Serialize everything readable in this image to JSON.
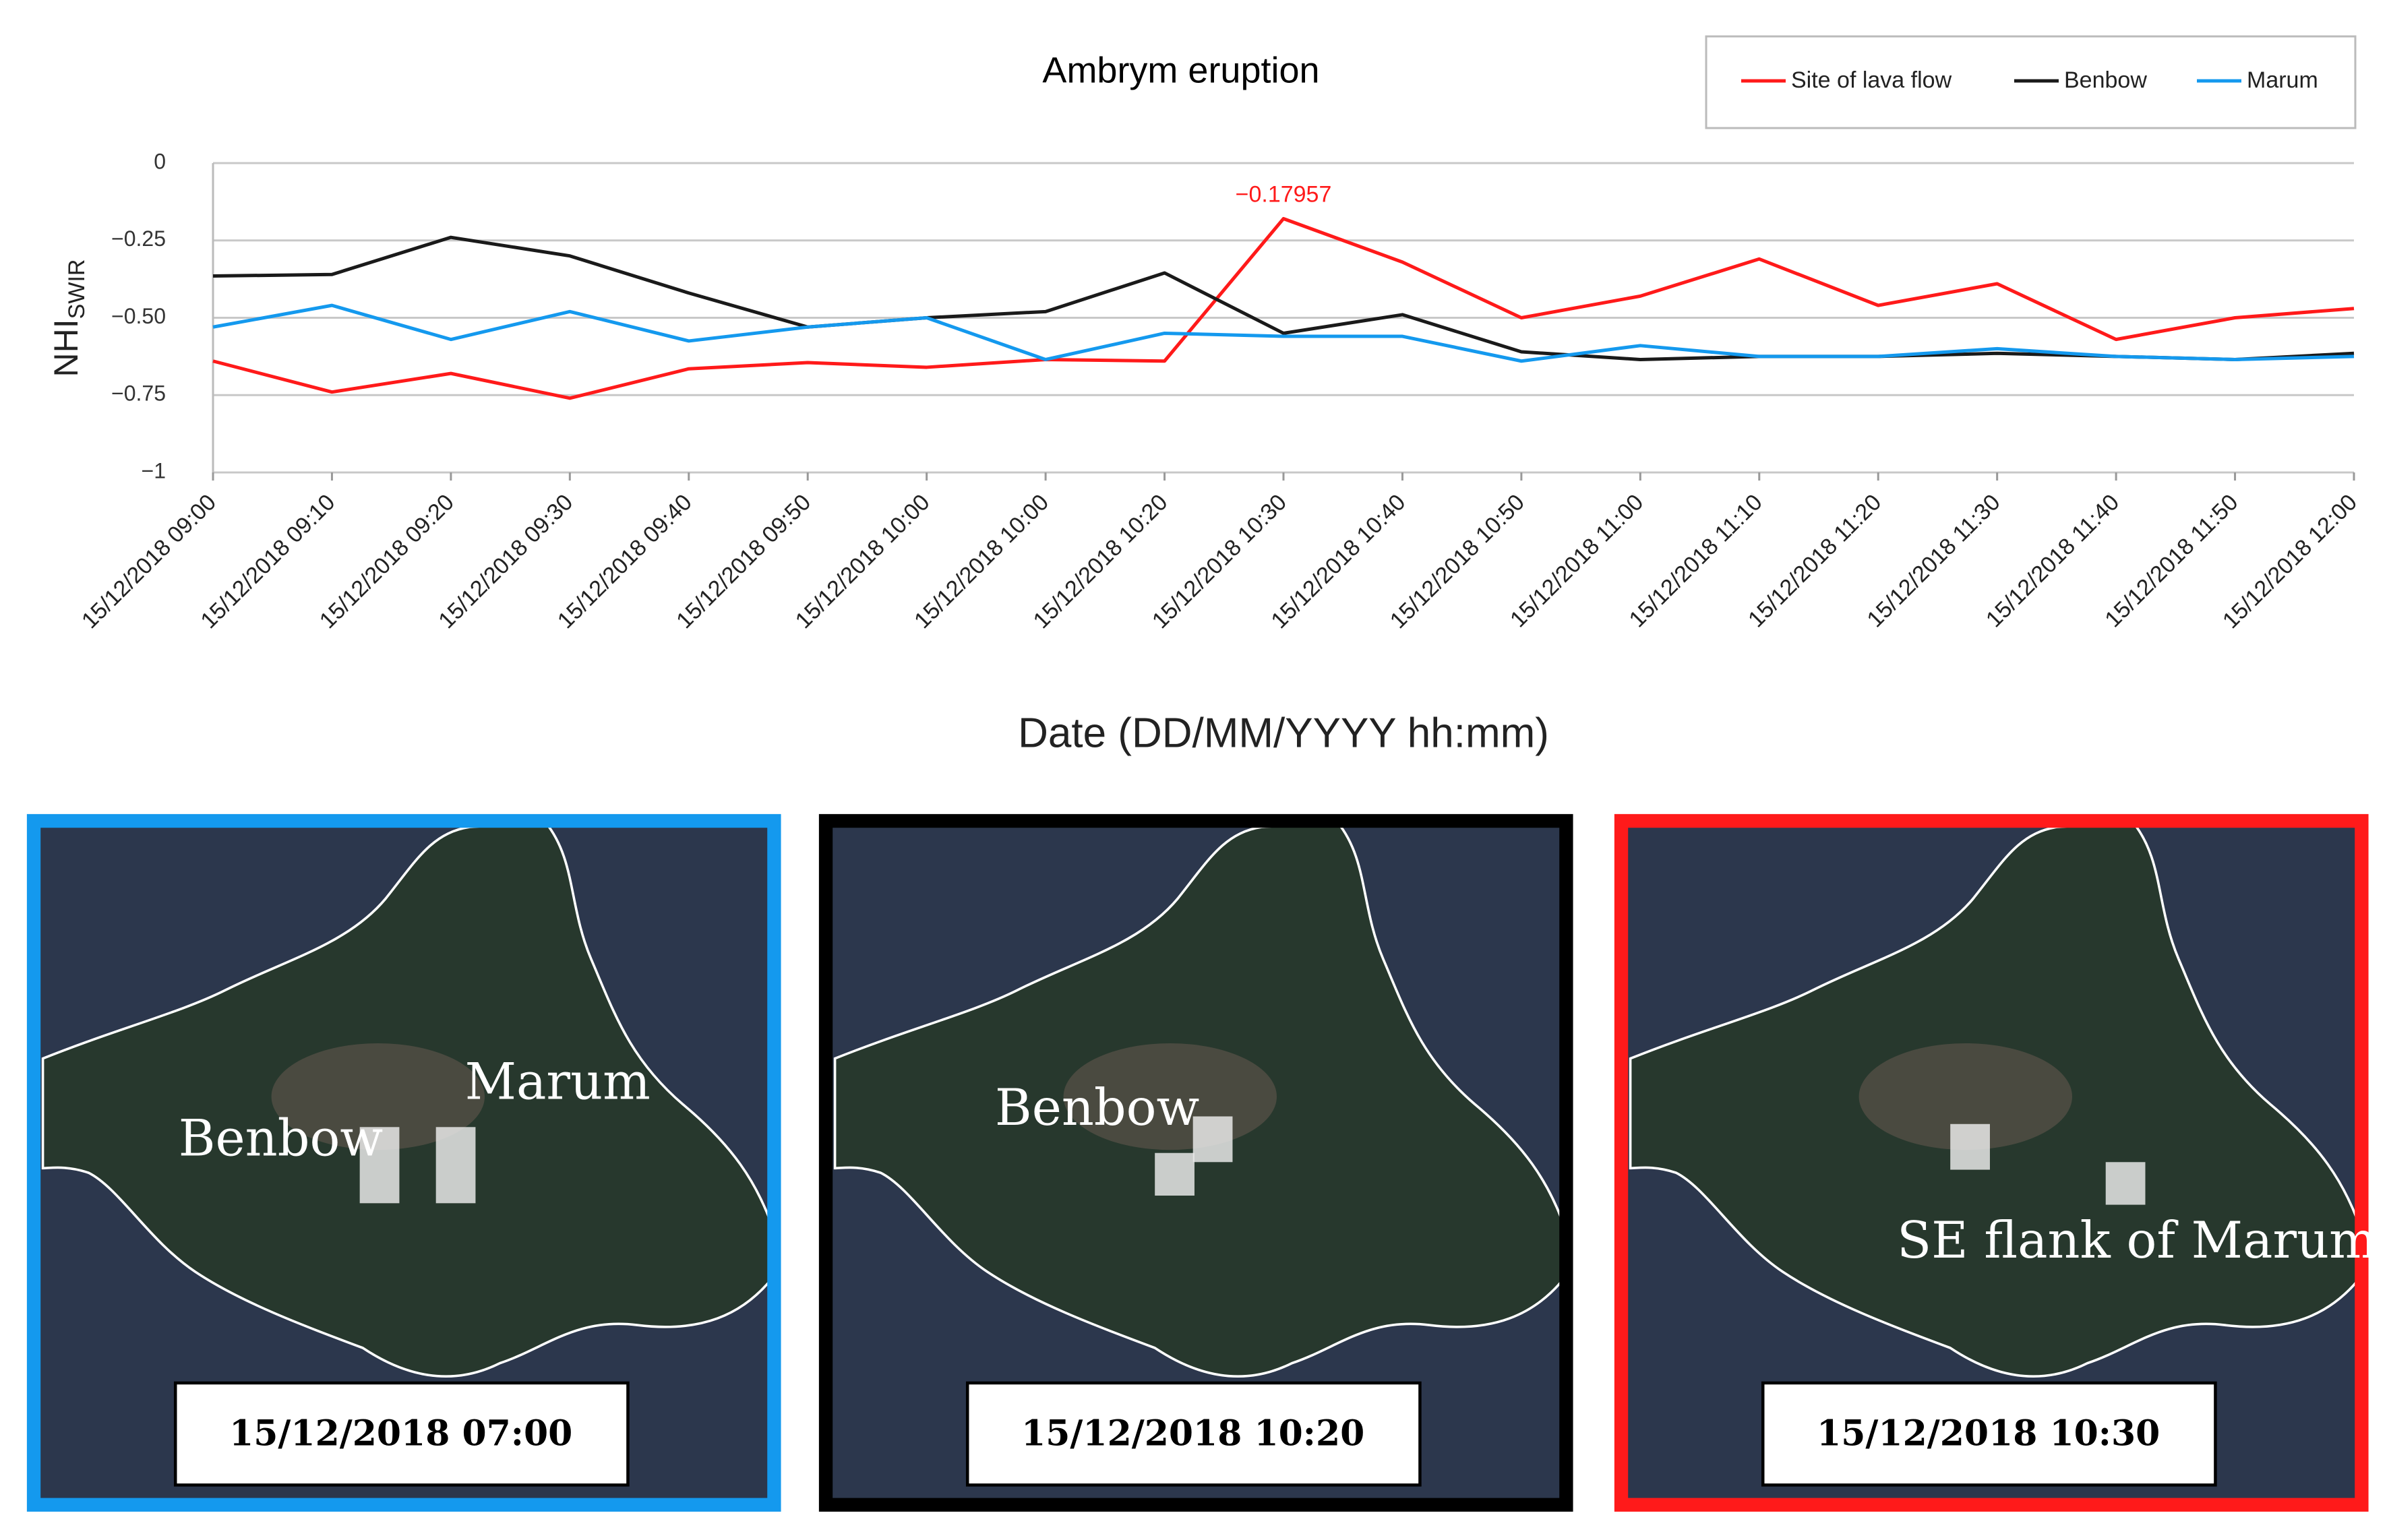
{
  "chart_data": {
    "type": "line",
    "title": "Ambrym eruption",
    "x_label": "Date (DD/MM/YYYY hh:mm)",
    "y_label": {
      "main": "NHI",
      "sub": "SWIR"
    },
    "categories": [
      "15/12/2018 09:00",
      "15/12/2018 09:10",
      "15/12/2018 09:20",
      "15/12/2018 09:30",
      "15/12/2018 09:40",
      "15/12/2018 09:50",
      "15/12/2018 10:00",
      "15/12/2018 10:00",
      "15/12/2018 10:20",
      "15/12/2018 10:30",
      "15/12/2018 10:40",
      "15/12/2018 10:50",
      "15/12/2018 11:00",
      "15/12/2018 11:10",
      "15/12/2018 11:20",
      "15/12/2018 11:30",
      "15/12/2018 11:40",
      "15/12/2018 11:50",
      "15/12/2018 12:00"
    ],
    "series": [
      {
        "name": "Site of lava flow",
        "color": "#ff1a1a",
        "values": [
          -0.64,
          -0.74,
          -0.68,
          -0.76,
          -0.665,
          -0.645,
          -0.66,
          -0.635,
          -0.64,
          -0.17957,
          -0.32,
          -0.5,
          -0.43,
          -0.31,
          -0.46,
          -0.39,
          -0.57,
          -0.5,
          -0.47
        ],
        "value_labels": [
          null,
          null,
          null,
          null,
          null,
          null,
          null,
          null,
          null,
          "−0.17957",
          null,
          null,
          null,
          null,
          null,
          null,
          null,
          null,
          null
        ]
      },
      {
        "name": "Benbow",
        "color": "#1a1a1a",
        "values": [
          -0.365,
          -0.36,
          -0.24,
          -0.3,
          -0.42,
          -0.53,
          -0.5,
          -0.48,
          -0.355,
          -0.55,
          -0.49,
          -0.61,
          -0.635,
          -0.625,
          -0.625,
          -0.615,
          -0.625,
          -0.635,
          -0.615
        ]
      },
      {
        "name": "Marum",
        "color": "#1499ee",
        "values": [
          -0.53,
          -0.46,
          -0.57,
          -0.48,
          -0.575,
          -0.53,
          -0.5,
          -0.635,
          -0.55,
          -0.56,
          -0.56,
          -0.64,
          -0.59,
          -0.625,
          -0.625,
          -0.6,
          -0.625,
          -0.635,
          -0.625
        ]
      }
    ],
    "ylim": [
      -1,
      0
    ],
    "yticks": [
      0,
      {
        "value": -0.25,
        "label": "−0.25"
      },
      {
        "value": -0.5,
        "label": "−0.50"
      },
      {
        "value": -0.75,
        "label": "−0.75"
      },
      {
        "value": -1,
        "label": "−1"
      }
    ],
    "grid": true,
    "legend": "top-right"
  },
  "panels": [
    {
      "color": "#1499ee",
      "date": "15/12/2018 07:00",
      "labels": [
        "Marum",
        "Benbow"
      ]
    },
    {
      "color": "#000000",
      "date": "15/12/2018 10:20",
      "labels": [
        "Benbow"
      ]
    },
    {
      "color": "#ff1a1a",
      "date": "15/12/2018 10:30",
      "labels": [
        "SE flank of Marum"
      ]
    }
  ]
}
